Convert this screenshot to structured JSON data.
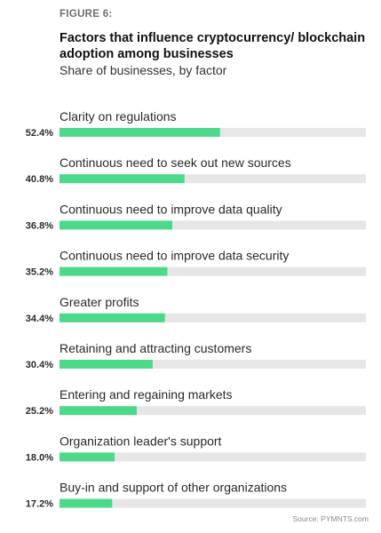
{
  "figure_label": "FIGURE 6:",
  "source": "Source: PYMNTS.com",
  "chart_data": {
    "type": "bar",
    "orientation": "horizontal",
    "title": "Factors that influence cryptocurrency/ blockchain adoption among businesses",
    "subtitle": "Share of businesses, by factor",
    "categories": [
      "Clarity on regulations",
      "Continuous need to seek out new sources",
      "Continuous need to improve data quality",
      "Continuous need to improve data security",
      "Greater profits",
      "Retaining and attracting customers",
      "Entering and regaining markets",
      "Organization leader's support",
      "Buy-in and support of other organizations"
    ],
    "values": [
      52.4,
      40.8,
      36.8,
      35.2,
      34.4,
      30.4,
      25.2,
      18.0,
      17.2
    ],
    "value_labels": [
      "52.4%",
      "40.8%",
      "36.8%",
      "35.2%",
      "34.4%",
      "30.4%",
      "25.2%",
      "18.0%",
      "17.2%"
    ],
    "xlim": [
      0,
      100
    ],
    "bar_color": "#4cd98a",
    "track_color": "#e6e6e6"
  }
}
